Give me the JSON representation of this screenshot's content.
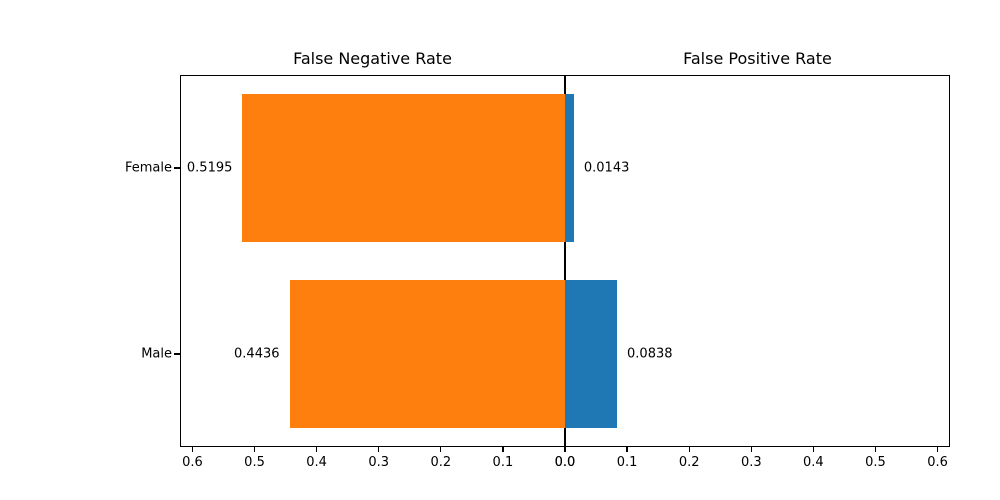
{
  "chart_data": {
    "type": "bar",
    "variant": "diverging-horizontal",
    "categories": [
      "Female",
      "Male"
    ],
    "series": [
      {
        "name": "False Negative Rate",
        "side": "left",
        "color": "#ff7f0e",
        "values": [
          0.5195,
          0.4436
        ],
        "labels": [
          "0.5195",
          "0.4436"
        ]
      },
      {
        "name": "False Positive Rate",
        "side": "right",
        "color": "#1f77b4",
        "values": [
          0.0143,
          0.0838
        ],
        "labels": [
          "0.0143",
          "0.0838"
        ]
      }
    ],
    "titles": {
      "left": "False Negative Rate",
      "right": "False Positive Rate"
    },
    "x_ticks": {
      "left_labels": [
        "0.6",
        "0.5",
        "0.4",
        "0.3",
        "0.2",
        "0.1",
        "0.0"
      ],
      "right_labels": [
        "0.0",
        "0.1",
        "0.2",
        "0.3",
        "0.4",
        "0.5",
        "0.6"
      ]
    },
    "xlim_each_side": [
      0,
      0.62
    ],
    "grid": false,
    "legend": "none",
    "background": "#ffffff",
    "axis_color": "#000000"
  }
}
